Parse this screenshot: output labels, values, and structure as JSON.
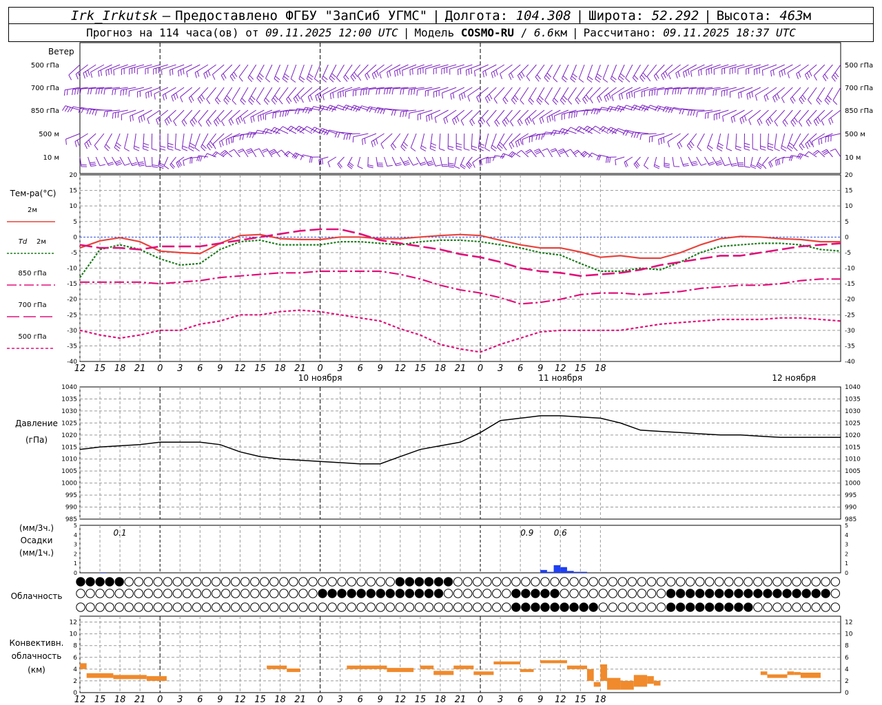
{
  "header": {
    "station": "Irk_Irkutsk",
    "dash": "—",
    "provided_by": "Предоставлено ФГБУ \"ЗапСиб УГМС\"",
    "lon_label": "Долгота:",
    "lon_value": "104.308",
    "lat_label": "Широта:",
    "lat_value": "52.292",
    "alt_label": "Высота:",
    "alt_value": "463",
    "alt_unit": "м",
    "forecast_prefix": "Прогноз на 114 часа(ов) от",
    "forecast_time": "09.11.2025 12:00 UTC",
    "model_label": "Модель",
    "model_name": "COSMO-RU",
    "model_res": "6.6",
    "model_res_unit": "км",
    "calc_label": "Рассчитано:",
    "calc_time": "09.11.2025 18:37 UTC"
  },
  "colors": {
    "t2m": "#e8433c",
    "td2m": "#1e7d1e",
    "t850": "#e0107a",
    "t700": "#e0107a",
    "t500": "#e0107a",
    "wind": "#7a1fc2",
    "pressure": "#000000",
    "precip": "#1f3ff0",
    "convective": "#f08a2c",
    "zero_line": "#3050e0"
  },
  "time_axis": {
    "hour_labels": [
      "12",
      "15",
      "18",
      "21",
      "0",
      "3",
      "6",
      "9",
      "12",
      "15",
      "18",
      "21",
      "0",
      "3",
      "6",
      "9",
      "12",
      "15",
      "18",
      "21",
      "0",
      "3",
      "6",
      "9",
      "12",
      "15",
      "18"
    ],
    "day_labels": [
      "10 ноября",
      "11 ноября",
      "12 ноября"
    ]
  },
  "wind_panel": {
    "title": "Ветер",
    "levels": [
      "500 гПа",
      "700 гПа",
      "850 гПа",
      "500 м",
      "10 м"
    ]
  },
  "temp_panel": {
    "title": "Тем-ра(°C)",
    "legend": [
      {
        "label": "2м",
        "style": "solid"
      },
      {
        "label": "Td",
        "label2": "2м",
        "style": "dotted"
      },
      {
        "label": "850 гПа",
        "style": "dashdot"
      },
      {
        "label": "700 гПа",
        "style": "longdash"
      },
      {
        "label": "500 гПа",
        "style": "shortdash"
      }
    ],
    "y_ticks": [
      "20",
      "15",
      "10",
      "5",
      "0",
      "-5",
      "-10",
      "-15",
      "-20",
      "-25",
      "-30",
      "-35",
      "-40"
    ]
  },
  "pressure_panel": {
    "title": "Давление",
    "unit": "(гПа)",
    "y_ticks": [
      "1040",
      "1035",
      "1030",
      "1025",
      "1020",
      "1015",
      "1010",
      "1005",
      "1000",
      "995",
      "990",
      "985"
    ]
  },
  "precip_panel": {
    "unit3": "(мм/3ч.)",
    "title": "Осадки",
    "unit1": "(мм/1ч.)",
    "y_ticks": [
      "5",
      "4",
      "3",
      "2",
      "1",
      "0"
    ],
    "annotations": [
      "0.1",
      "0.9",
      "0.6"
    ]
  },
  "cloud_panel": {
    "title": "Облачность"
  },
  "conv_panel": {
    "title1": "Конвективн.",
    "title2": "облачность",
    "unit": "(км)",
    "y_ticks": [
      "12",
      "10",
      "8",
      "6",
      "4",
      "2",
      "0"
    ]
  },
  "chart_data": [
    {
      "type": "line",
      "title": "Тем-ра(°C)",
      "x_hours": [
        0,
        3,
        6,
        9,
        12,
        15,
        18,
        21,
        24,
        27,
        30,
        33,
        36,
        39,
        42,
        45,
        48,
        51,
        54,
        57,
        60,
        63,
        66,
        69,
        72,
        75,
        78,
        81,
        84,
        87,
        90,
        93,
        96,
        99,
        102,
        105,
        108,
        111,
        114
      ],
      "ylim": [
        -40,
        20
      ],
      "series": [
        {
          "name": "2м",
          "values": [
            -3.5,
            -1.2,
            -0.2,
            -1.5,
            -4.5,
            -5,
            -5.3,
            -2,
            0.5,
            0.8,
            -0.5,
            -0.8,
            -0.8,
            0,
            0,
            -0.5,
            -0.5,
            0,
            0.5,
            0.8,
            0.5,
            -1,
            -2.5,
            -3.5,
            -3.5,
            -4.8,
            -6.5,
            -6,
            -6.8,
            -6.8,
            -5,
            -2.5,
            -0.5,
            0.2,
            0,
            -0.5,
            -0.8,
            -1.5,
            -1.5
          ]
        },
        {
          "name": "Td 2м",
          "values": [
            -13,
            -4,
            -2.5,
            -4,
            -7,
            -9,
            -8.5,
            -4,
            -1.5,
            -1,
            -2.5,
            -2.5,
            -2.5,
            -1.5,
            -1.5,
            -2,
            -2.5,
            -1.5,
            -1,
            -1,
            -1.5,
            -2.5,
            -3.5,
            -5,
            -5.8,
            -8.5,
            -11,
            -11,
            -10,
            -10.5,
            -8,
            -5,
            -3,
            -2.5,
            -2,
            -2,
            -2.5,
            -4,
            -4.5
          ]
        },
        {
          "name": "850 гПа",
          "values": [
            -14.5,
            -14.5,
            -14.5,
            -14.5,
            -15,
            -14.5,
            -14,
            -13,
            -12.5,
            -12,
            -11.5,
            -11.5,
            -11,
            -11,
            -11,
            -11,
            -12,
            -13.5,
            -15.5,
            -17,
            -18,
            -19.5,
            -21.5,
            -21,
            -20,
            -18.5,
            -18,
            -18,
            -18.5,
            -18,
            -17.5,
            -16.5,
            -16,
            -15.5,
            -15.5,
            -15,
            -14,
            -13.5,
            -13.5
          ]
        },
        {
          "name": "700 гПа",
          "values": [
            -2.5,
            -3.5,
            -3.5,
            -4,
            -3,
            -3,
            -3,
            -2,
            -1,
            0,
            1,
            2,
            2.5,
            2.5,
            1,
            -1,
            -2,
            -3,
            -4,
            -5.5,
            -6.5,
            -8,
            -10,
            -11,
            -11.5,
            -12.5,
            -12,
            -11.5,
            -10.5,
            -9,
            -8,
            -7,
            -6,
            -6,
            -5,
            -4,
            -3,
            -2.5,
            -2
          ]
        },
        {
          "name": "500 гПа",
          "values": [
            -30,
            -31.5,
            -32.5,
            -31.5,
            -30,
            -30,
            -28,
            -27,
            -25,
            -25,
            -24,
            -23.5,
            -24,
            -25,
            -26,
            -27,
            -29.5,
            -31.5,
            -34.5,
            -36,
            -37,
            -34.5,
            -32.5,
            -30.5,
            -30,
            -30,
            -30,
            -30,
            -29,
            -28,
            -27.5,
            -27,
            -26.5,
            -26.5,
            -26.5,
            -26,
            -26,
            -26.5,
            -27
          ]
        }
      ]
    },
    {
      "type": "line",
      "title": "Давление",
      "x_hours": [
        0,
        3,
        6,
        9,
        12,
        15,
        18,
        21,
        24,
        27,
        30,
        33,
        36,
        39,
        42,
        45,
        48,
        51,
        54,
        57,
        60,
        63,
        66,
        69,
        72,
        75,
        78,
        81,
        84,
        87,
        90,
        93,
        96,
        99,
        102,
        105,
        108,
        111,
        114
      ],
      "ylim": [
        985,
        1040
      ],
      "series": [
        {
          "name": "Давление",
          "values": [
            1014,
            1015,
            1015.5,
            1016,
            1017,
            1017,
            1017,
            1016,
            1013,
            1011,
            1010,
            1009.5,
            1009,
            1008.5,
            1008,
            1008,
            1011,
            1014,
            1015.5,
            1017,
            1021,
            1026,
            1027,
            1028,
            1028,
            1027.5,
            1027,
            1025,
            1022,
            1021.5,
            1021,
            1020.5,
            1020,
            1020,
            1019.5,
            1019,
            1019,
            1019,
            1019
          ]
        }
      ]
    },
    {
      "type": "bar",
      "title": "Осадки",
      "x_hours": [
        3,
        69,
        70,
        71,
        72,
        73,
        74,
        75
      ],
      "values": [
        0.05,
        0.3,
        0.1,
        0.8,
        0.6,
        0.2,
        0.1,
        0.1
      ],
      "ylim": [
        0,
        5
      ]
    },
    {
      "type": "bar",
      "title": "Конвективн. облачность",
      "segments": [
        {
          "from": 0,
          "to": 1,
          "bottom": 4,
          "top": 5
        },
        {
          "from": 1,
          "to": 5,
          "bottom": 2.5,
          "top": 3.3
        },
        {
          "from": 5,
          "to": 10,
          "bottom": 2.3,
          "top": 3
        },
        {
          "from": 10,
          "to": 13,
          "bottom": 2,
          "top": 2.8
        },
        {
          "from": 28,
          "to": 31,
          "bottom": 4,
          "top": 4.6
        },
        {
          "from": 31,
          "to": 33,
          "bottom": 3.5,
          "top": 4.1
        },
        {
          "from": 40,
          "to": 46,
          "bottom": 4,
          "top": 4.6
        },
        {
          "from": 46,
          "to": 50,
          "bottom": 3.5,
          "top": 4.2
        },
        {
          "from": 51,
          "to": 53,
          "bottom": 4,
          "top": 4.6
        },
        {
          "from": 53,
          "to": 56,
          "bottom": 3,
          "top": 3.7
        },
        {
          "from": 56,
          "to": 59,
          "bottom": 4,
          "top": 4.6
        },
        {
          "from": 59,
          "to": 62,
          "bottom": 3,
          "top": 3.6
        },
        {
          "from": 62,
          "to": 66,
          "bottom": 4.8,
          "top": 5.3
        },
        {
          "from": 66,
          "to": 68,
          "bottom": 3.5,
          "top": 4
        },
        {
          "from": 69,
          "to": 73,
          "bottom": 5,
          "top": 5.5
        },
        {
          "from": 73,
          "to": 76,
          "bottom": 4,
          "top": 4.6
        },
        {
          "from": 76,
          "to": 77,
          "bottom": 2,
          "top": 4
        },
        {
          "from": 77,
          "to": 78,
          "bottom": 1,
          "top": 1.8
        },
        {
          "from": 78,
          "to": 79,
          "bottom": 2,
          "top": 4.8
        },
        {
          "from": 79,
          "to": 81,
          "bottom": 0.5,
          "top": 2.5
        },
        {
          "from": 81,
          "to": 83,
          "bottom": 0.5,
          "top": 2
        },
        {
          "from": 83,
          "to": 85,
          "bottom": 1,
          "top": 3
        },
        {
          "from": 85,
          "to": 86,
          "bottom": 1.5,
          "top": 2.8
        },
        {
          "from": 86,
          "to": 87,
          "bottom": 1.2,
          "top": 2
        },
        {
          "from": 102,
          "to": 103,
          "bottom": 3,
          "top": 3.6
        },
        {
          "from": 103,
          "to": 106,
          "bottom": 2.5,
          "top": 3.1
        },
        {
          "from": 106,
          "to": 107,
          "bottom": 3,
          "top": 3.6
        },
        {
          "from": 107,
          "to": 108,
          "bottom": 3,
          "top": 3.5
        },
        {
          "from": 108,
          "to": 111,
          "bottom": 2.5,
          "top": 3.4
        }
      ],
      "ylim": [
        0,
        13
      ]
    }
  ]
}
